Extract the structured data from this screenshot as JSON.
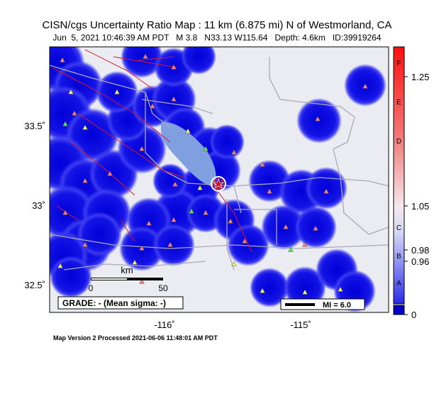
{
  "header": {
    "title": "CISN/cgs Uncertainty Ratio Map : 11 km (6.875 mi) N of Westmorland, CA",
    "subtitle": "Jun  5, 2021 10:46:39 AM PDT   M 3.8   N33.13 W115.64   Depth: 4.6km   ID:39919264"
  },
  "map": {
    "lat_labels": [
      "33.5˚",
      "33˚",
      "32.5˚"
    ],
    "lon_labels": [
      "-116˚",
      "-115˚"
    ],
    "scale_bar": {
      "unit": "km",
      "start": "0",
      "end": "50"
    },
    "grade": "GRADE: - (Mean sigma: -)",
    "mi_legend": "MI = 6.0"
  },
  "colorbar": {
    "letters": [
      "F",
      "E",
      "D",
      "C",
      "B",
      "A"
    ],
    "ticks": [
      "1.25",
      "1.05",
      "0.98",
      "0.96",
      "0"
    ]
  },
  "footer": "Map Version 2 Processed 2021-06-06 11:48:01 AM PDT"
}
